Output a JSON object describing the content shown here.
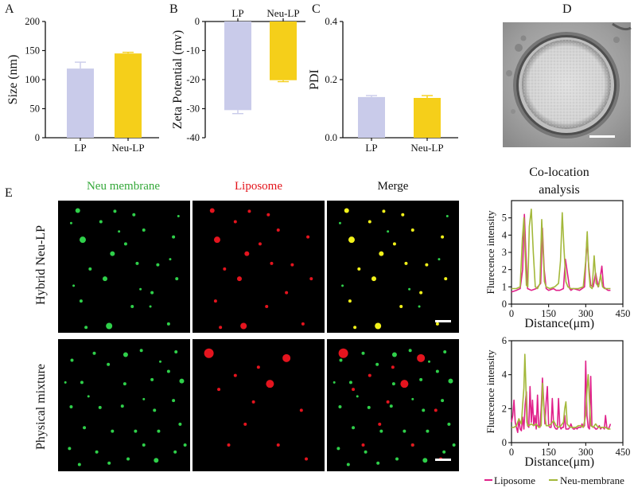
{
  "panels": {
    "a": "A",
    "b": "B",
    "c": "C",
    "d": "D",
    "e": "E"
  },
  "colors": {
    "lp": "#c9cbea",
    "neu": "#f5cf1a",
    "liposome": "#e0218a",
    "membrane": "#a3b83a",
    "merge_green": "#2fd04a",
    "merge_red": "#e4141e",
    "merge_yellow": "#f2f21a"
  },
  "chart_data": [
    {
      "type": "bar",
      "id": "size",
      "ylabel": "Size (nm)",
      "categories": [
        "LP",
        "Neu-LP"
      ],
      "values": [
        119,
        145
      ],
      "errors": [
        11,
        2
      ],
      "ylim": [
        0,
        200
      ],
      "yticks": [
        "0",
        "50",
        "100",
        "150",
        "200"
      ],
      "tickvals": [
        0,
        50,
        100,
        150,
        200
      ]
    },
    {
      "type": "bar",
      "id": "zeta",
      "ylabel": "Zeta Potential (mv)",
      "categories": [
        "LP",
        "Neu-LP"
      ],
      "values": [
        -30.5,
        -20.2
      ],
      "errors": [
        1.2,
        0.5
      ],
      "ylim": [
        -40,
        0
      ],
      "yticks": [
        "0",
        "-10",
        "-20",
        "-30",
        "-40"
      ],
      "tickvals": [
        0,
        -10,
        -20,
        -30,
        -40
      ]
    },
    {
      "type": "bar",
      "id": "pdi",
      "ylabel": "PDI",
      "categories": [
        "LP",
        "Neu-LP"
      ],
      "values": [
        0.14,
        0.137
      ],
      "errors": [
        0.005,
        0.008
      ],
      "ylim": [
        0,
        0.4
      ],
      "yticks": [
        "0.0",
        "0.2",
        "0.4"
      ],
      "tickvals": [
        0,
        0.2,
        0.4
      ]
    },
    {
      "type": "line",
      "id": "hybrid",
      "xlabel": "Distance(μm)",
      "ylabel": "Flurecence intensity",
      "xlim": [
        0,
        450
      ],
      "ylim": [
        0,
        6
      ],
      "xticks": [
        "0",
        "150",
        "300",
        "450"
      ],
      "xtickvals": [
        0,
        150,
        300,
        450
      ],
      "yticks": [
        "0",
        "1",
        "2",
        "3",
        "4",
        "5"
      ],
      "ytickvals": [
        0,
        1,
        2,
        3,
        4,
        5
      ],
      "series": [
        {
          "name": "Liposome",
          "x": [
            0,
            20,
            35,
            45,
            52,
            58,
            65,
            80,
            100,
            118,
            125,
            132,
            140,
            150,
            170,
            180,
            195,
            210,
            218,
            228,
            235,
            240,
            250,
            275,
            295,
            305,
            312,
            320,
            330,
            340,
            350,
            358,
            365,
            372,
            380,
            390,
            400
          ],
          "y": [
            0.7,
            0.8,
            0.9,
            2.0,
            5.2,
            3.0,
            0.9,
            0.8,
            0.9,
            1.2,
            4.4,
            2.0,
            0.9,
            0.8,
            0.9,
            0.8,
            0.8,
            0.9,
            2.6,
            1.6,
            0.9,
            0.8,
            0.9,
            0.8,
            1.0,
            3.8,
            2.2,
            1.1,
            1.0,
            1.8,
            1.0,
            1.5,
            2.2,
            1.0,
            0.9,
            0.8,
            0.8
          ]
        },
        {
          "name": "Neu-membrane",
          "x": [
            0,
            20,
            35,
            44,
            50,
            55,
            60,
            66,
            72,
            80,
            88,
            96,
            105,
            115,
            122,
            127,
            133,
            140,
            155,
            175,
            190,
            198,
            205,
            212,
            220,
            228,
            240,
            252,
            270,
            290,
            300,
            306,
            312,
            318,
            326,
            334,
            342,
            352,
            360,
            368,
            376,
            386,
            400
          ],
          "y": [
            0.9,
            0.9,
            1.0,
            3.8,
            5.0,
            3.0,
            1.1,
            1.0,
            4.5,
            5.5,
            3.0,
            1.0,
            0.9,
            1.2,
            4.9,
            3.4,
            1.3,
            1.0,
            0.9,
            1.0,
            1.2,
            2.5,
            5.3,
            3.2,
            1.3,
            1.0,
            0.9,
            0.9,
            0.9,
            1.0,
            2.5,
            4.2,
            2.0,
            1.0,
            0.9,
            2.8,
            1.2,
            1.0,
            1.7,
            1.0,
            0.9,
            0.9,
            0.9
          ]
        }
      ]
    },
    {
      "type": "line",
      "id": "physical",
      "xlabel": "Distance(μm)",
      "ylabel": "Flurecence intensity",
      "xlim": [
        0,
        450
      ],
      "ylim": [
        0,
        6
      ],
      "xticks": [
        "0",
        "150",
        "300",
        "450"
      ],
      "xtickvals": [
        0,
        150,
        300,
        450
      ],
      "yticks": [
        "0",
        "2",
        "4",
        "6"
      ],
      "ytickvals": [
        0,
        2,
        4,
        6
      ],
      "series": [
        {
          "name": "Liposome",
          "x": [
            0,
            5,
            10,
            15,
            20,
            25,
            30,
            35,
            40,
            45,
            50,
            55,
            60,
            65,
            70,
            75,
            80,
            85,
            90,
            95,
            100,
            105,
            110,
            115,
            120,
            125,
            130,
            135,
            140,
            145,
            150,
            155,
            160,
            165,
            170,
            175,
            180,
            185,
            190,
            195,
            200,
            205,
            210,
            215,
            220,
            225,
            230,
            235,
            240,
            245,
            250,
            255,
            260,
            265,
            270,
            275,
            280,
            285,
            290,
            295,
            300,
            305,
            310,
            315,
            320,
            325,
            330,
            335,
            340,
            345,
            350,
            355,
            360,
            365,
            370,
            375,
            380,
            385,
            390,
            395,
            400
          ],
          "y": [
            1.2,
            1.6,
            2.5,
            1.2,
            0.9,
            0.6,
            1.4,
            0.8,
            0.7,
            1.5,
            0.8,
            2.2,
            3.0,
            1.0,
            0.9,
            3.3,
            1.2,
            2.5,
            1.0,
            1.6,
            0.8,
            2.8,
            1.0,
            0.9,
            2.0,
            3.8,
            2.5,
            1.1,
            2.4,
            3.3,
            1.0,
            0.9,
            0.9,
            2.6,
            1.1,
            0.9,
            0.8,
            0.8,
            2.6,
            1.0,
            0.8,
            0.9,
            0.9,
            1.6,
            0.8,
            0.8,
            0.8,
            0.9,
            1.1,
            0.9,
            0.8,
            0.8,
            0.9,
            0.8,
            0.9,
            0.9,
            0.9,
            1.1,
            0.9,
            1.0,
            4.8,
            1.6,
            0.9,
            0.8,
            3.9,
            1.0,
            0.9,
            0.9,
            0.8,
            0.8,
            0.9,
            1.0,
            0.8,
            0.9,
            0.9,
            0.8,
            1.6,
            0.9,
            0.8,
            0.9,
            1.1
          ]
        },
        {
          "name": "Neu-membrane",
          "x": [
            0,
            10,
            20,
            30,
            40,
            46,
            50,
            54,
            58,
            62,
            66,
            70,
            80,
            90,
            100,
            110,
            120,
            125,
            130,
            140,
            150,
            160,
            170,
            180,
            190,
            200,
            210,
            215,
            220,
            225,
            230,
            240,
            250,
            260,
            270,
            280,
            290,
            300,
            305,
            310,
            315,
            320,
            330,
            340,
            350,
            360,
            370,
            380,
            390,
            400
          ],
          "y": [
            0.9,
            0.9,
            1.0,
            1.4,
            1.1,
            2.4,
            3.2,
            5.2,
            3.5,
            1.2,
            1.0,
            1.0,
            1.1,
            1.0,
            1.1,
            0.9,
            1.0,
            3.5,
            2.2,
            1.0,
            1.0,
            1.1,
            1.3,
            1.0,
            0.9,
            1.0,
            1.2,
            2.0,
            2.4,
            1.1,
            1.0,
            0.9,
            0.9,
            0.9,
            1.0,
            1.0,
            0.9,
            1.6,
            3.1,
            4.0,
            2.5,
            1.0,
            0.9,
            1.1,
            0.9,
            0.9,
            0.9,
            0.9,
            0.8,
            0.8
          ]
        }
      ]
    }
  ],
  "images": {
    "columns": [
      "Neu membrane",
      "Liposome",
      "Merge"
    ],
    "rows": [
      "Hybrid Neu-LP",
      "Physical mixture"
    ],
    "hybrid_dots": [
      [
        20,
        12,
        3
      ],
      [
        65,
        13,
        2
      ],
      [
        88,
        18,
        2
      ],
      [
        26,
        54,
        4
      ],
      [
        62,
        74,
        3
      ],
      [
        35,
        96,
        2
      ],
      [
        78,
        60,
        2
      ],
      [
        92,
        88,
        2
      ],
      [
        24,
        142,
        2
      ],
      [
        53,
        110,
        3
      ],
      [
        86,
        150,
        2
      ],
      [
        58,
        178,
        4
      ],
      [
        110,
        130,
        2
      ],
      [
        117,
        90,
        2
      ],
      [
        136,
        50,
        2
      ],
      [
        48,
        28,
        2
      ],
      [
        30,
        180,
        2
      ],
      [
        130,
        175,
        2
      ],
      [
        100,
        40,
        2
      ],
      [
        140,
        110,
        2
      ]
    ],
    "green_only_hybrid": [
      [
        12,
        30,
        1.5
      ],
      [
        70,
        42,
        1.5
      ],
      [
        108,
        150,
        1.5
      ],
      [
        132,
        82,
        1.5
      ],
      [
        15,
        120,
        1.5
      ],
      [
        96,
        125,
        1.5
      ],
      [
        142,
        20,
        1.5
      ]
    ],
    "phys_green": [
      [
        13,
        28,
        2
      ],
      [
        40,
        18,
        2
      ],
      [
        78,
        20,
        3
      ],
      [
        97,
        14,
        2
      ],
      [
        139,
        16,
        2
      ],
      [
        57,
        34,
        2
      ],
      [
        25,
        60,
        2
      ],
      [
        77,
        62,
        2
      ],
      [
        110,
        56,
        2
      ],
      [
        130,
        44,
        2
      ],
      [
        146,
        58,
        3
      ],
      [
        12,
        95,
        2
      ],
      [
        47,
        96,
        2
      ],
      [
        74,
        94,
        2
      ],
      [
        113,
        100,
        2
      ],
      [
        136,
        86,
        2
      ],
      [
        28,
        125,
        2
      ],
      [
        62,
        130,
        2
      ],
      [
        90,
        130,
        2
      ],
      [
        118,
        130,
        2
      ],
      [
        144,
        120,
        2
      ],
      [
        10,
        155,
        2
      ],
      [
        43,
        160,
        2
      ],
      [
        81,
        170,
        2
      ],
      [
        115,
        172,
        3
      ],
      [
        138,
        160,
        2
      ],
      [
        22,
        178,
        2
      ],
      [
        58,
        176,
        2
      ],
      [
        100,
        150,
        2
      ],
      [
        150,
        150,
        2
      ],
      [
        33,
        80,
        1.5
      ],
      [
        100,
        84,
        1.5
      ],
      [
        120,
        30,
        1.5
      ],
      [
        5,
        60,
        1.5
      ]
    ],
    "phys_red": [
      [
        16,
        18,
        6
      ],
      [
        110,
        25,
        5
      ],
      [
        90,
        62,
        5
      ],
      [
        28,
        70,
        2
      ],
      [
        70,
        88,
        2
      ],
      [
        128,
        100,
        2
      ],
      [
        60,
        120,
        2
      ],
      [
        100,
        150,
        2
      ],
      [
        40,
        150,
        2
      ],
      [
        134,
        170,
        2
      ],
      [
        76,
        38,
        2
      ],
      [
        48,
        50,
        2
      ]
    ]
  },
  "scale_bar": {
    "color": "#ffffff"
  },
  "coloc": {
    "title_line1": "Co-location",
    "title_line2": "analysis"
  },
  "legend": {
    "items": [
      {
        "name": "Liposome",
        "color": "#e0218a"
      },
      {
        "name": "Neu-membrane",
        "color": "#a3b83a"
      }
    ]
  }
}
